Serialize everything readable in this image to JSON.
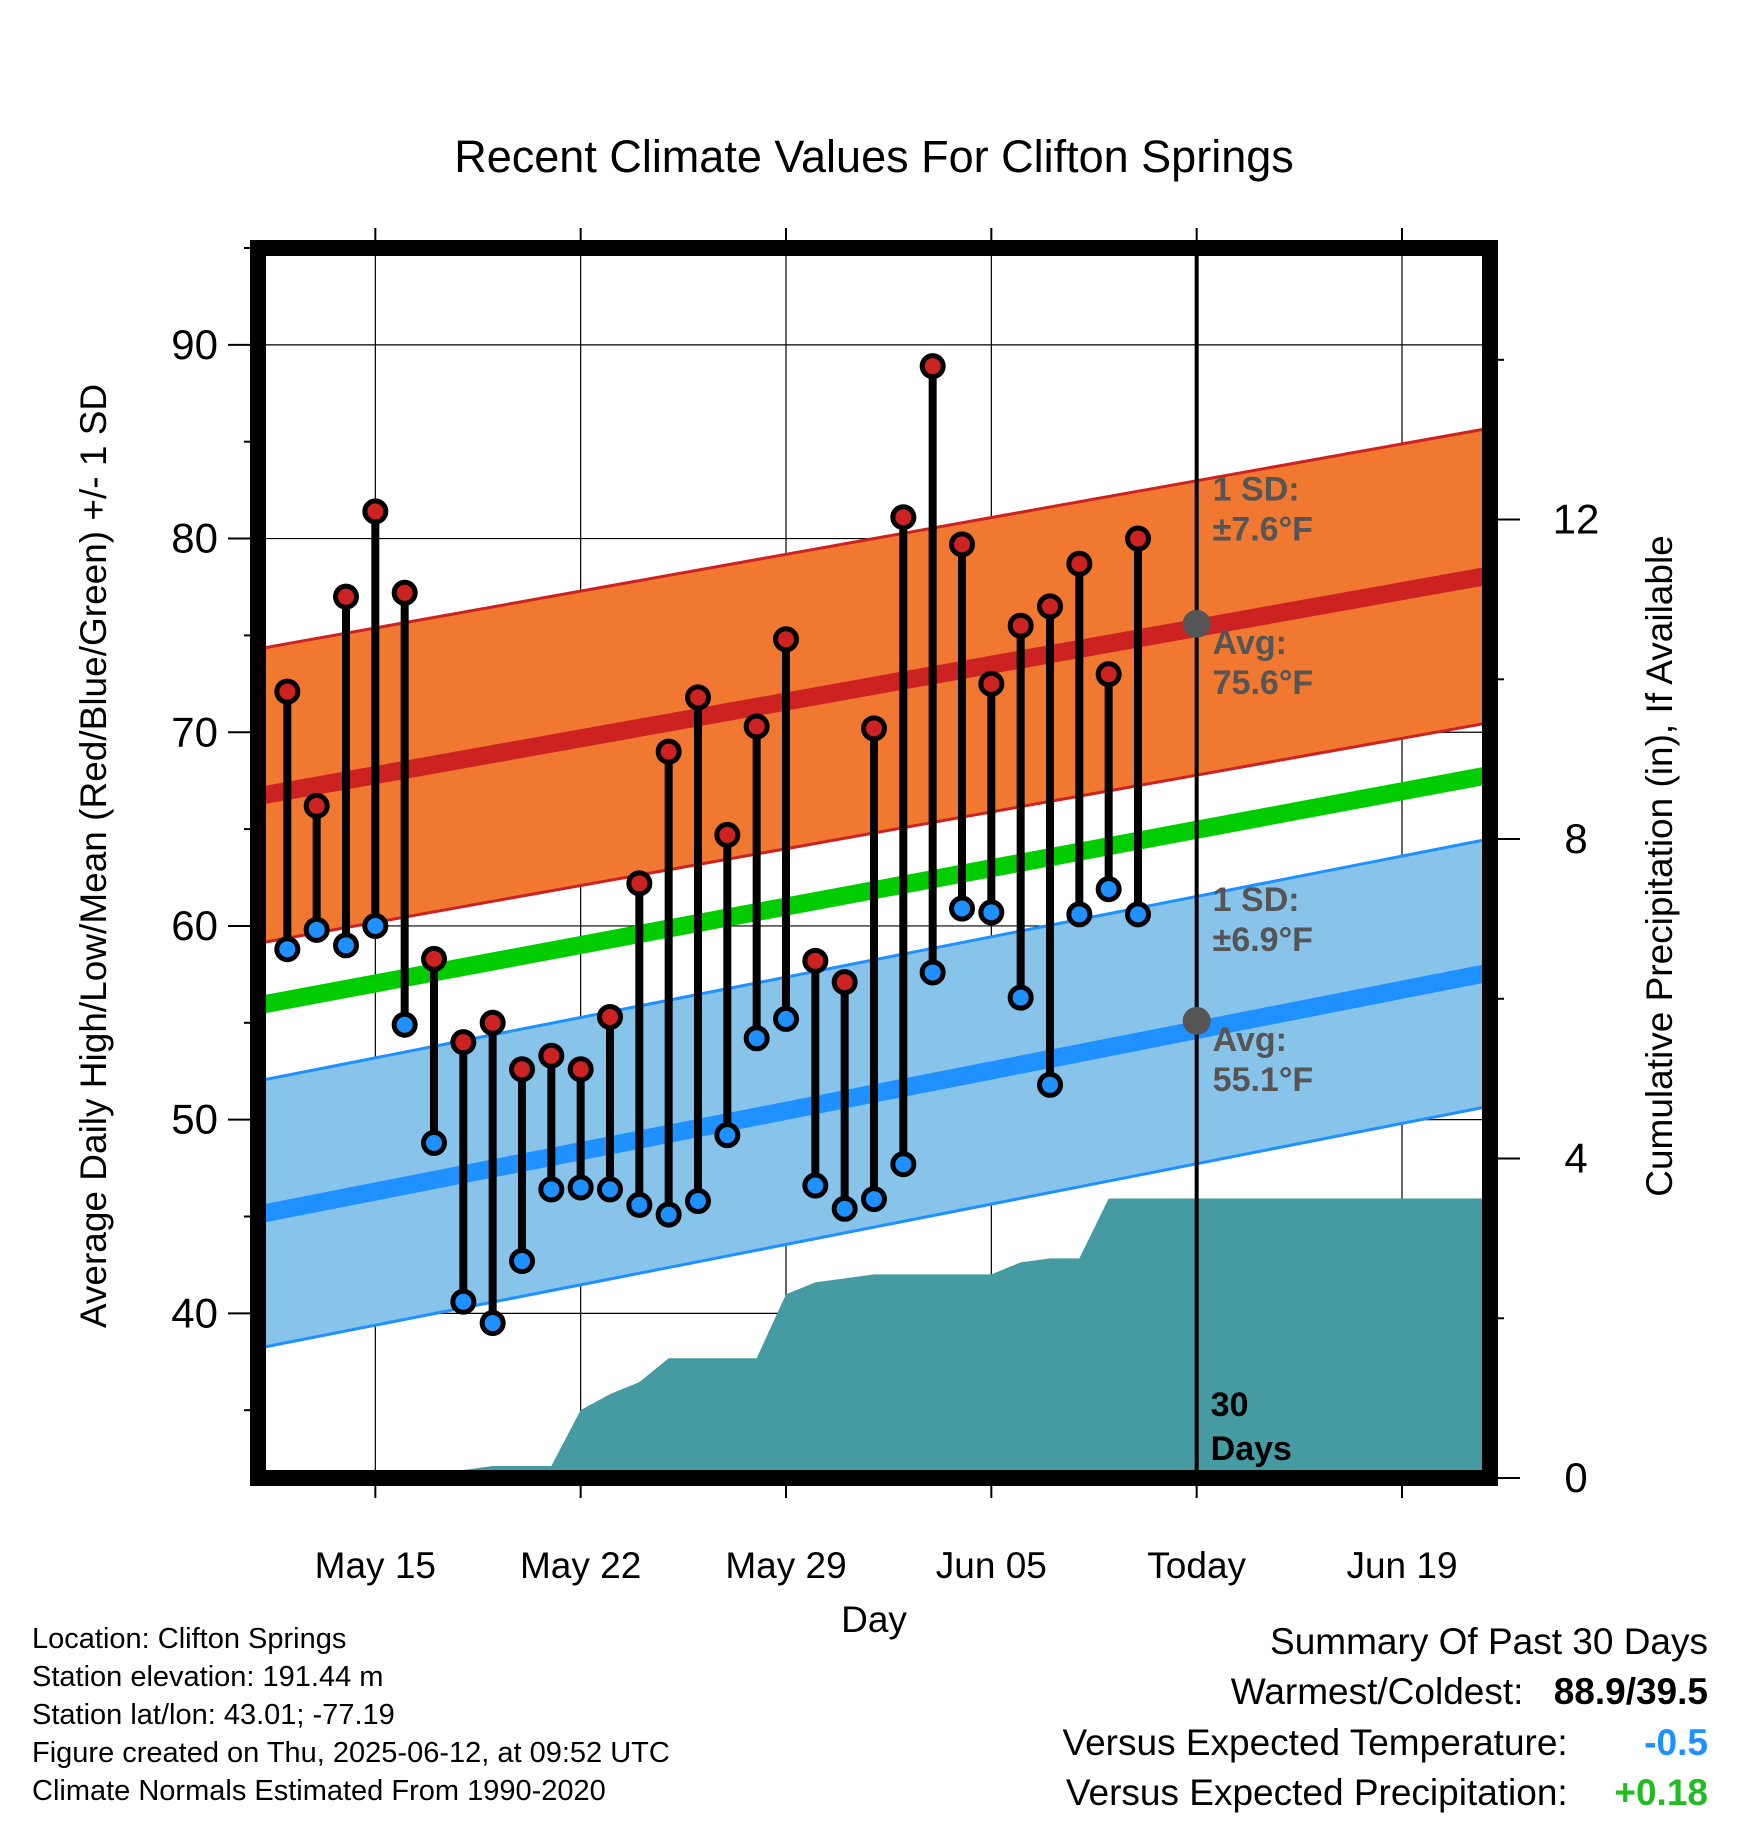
{
  "chart_data": {
    "type": "line",
    "title": "Recent Climate Values For Clifton Springs",
    "xlabel": "Day",
    "ylabel": "Average Daily High/Low/Mean (Red/Blue/Green) +/- 1 SD",
    "y2label": "Cumulative Precipitation (in), If Available",
    "ylim": [
      31.5,
      95
    ],
    "y2lim": [
      0,
      15.4
    ],
    "yticks": [
      40,
      50,
      60,
      70,
      80,
      90
    ],
    "y2ticks": [
      0,
      4,
      8,
      12
    ],
    "xlim": [
      "May 11",
      "Jun 22"
    ],
    "xticks": [
      {
        "date": "May 15",
        "label": "May 15"
      },
      {
        "date": "May 22",
        "label": "May 22"
      },
      {
        "date": "May 29",
        "label": "May 29"
      },
      {
        "date": "Jun 05",
        "label": "Jun 05"
      },
      {
        "date": "Jun 12",
        "label": "Today"
      },
      {
        "date": "Jun 19",
        "label": "Jun 19"
      }
    ],
    "grid": true,
    "today": "Jun 12",
    "period_label": "30 Days",
    "dates": [
      "May 12",
      "May 13",
      "May 14",
      "May 15",
      "May 16",
      "May 17",
      "May 18",
      "May 19",
      "May 20",
      "May 21",
      "May 22",
      "May 23",
      "May 24",
      "May 25",
      "May 26",
      "May 27",
      "May 28",
      "May 29",
      "May 30",
      "May 31",
      "Jun 01",
      "Jun 02",
      "Jun 03",
      "Jun 04",
      "Jun 05",
      "Jun 06",
      "Jun 07",
      "Jun 08",
      "Jun 09",
      "Jun 10",
      "Jun 11"
    ],
    "daily_high": [
      72.1,
      66.2,
      77.0,
      81.4,
      77.2,
      58.3,
      54.0,
      55.0,
      52.6,
      53.3,
      52.6,
      55.3,
      62.2,
      69.0,
      71.8,
      64.7,
      70.3,
      74.8,
      58.2,
      57.1,
      70.2,
      81.1,
      88.9,
      79.7,
      72.5,
      75.5,
      76.5,
      78.7,
      73.0,
      80.0,
      null
    ],
    "daily_low": [
      58.8,
      59.8,
      59.0,
      60.0,
      54.9,
      48.8,
      40.6,
      39.5,
      42.7,
      46.4,
      46.5,
      46.4,
      45.6,
      45.1,
      45.8,
      49.2,
      54.2,
      55.2,
      46.6,
      45.4,
      45.9,
      47.7,
      57.6,
      60.9,
      60.7,
      56.3,
      51.8,
      60.6,
      61.9,
      60.6,
      null
    ],
    "normal_high": {
      "start": 66.7,
      "end": 78.1,
      "start_date": "May 11",
      "end_date": "Jun 22",
      "today_value": 75.6,
      "sd": 7.6
    },
    "normal_low": {
      "start": 45.1,
      "end": 57.6,
      "start_date": "May 11",
      "end_date": "Jun 22",
      "today_value": 55.1,
      "sd": 6.9
    },
    "normal_mean": {
      "start": 55.9,
      "end": 67.8,
      "start_date": "May 11",
      "end_date": "Jun 22"
    },
    "cumulative_precip": {
      "dates": [
        "May 11",
        "May 14",
        "May 15",
        "May 16",
        "May 17",
        "May 18",
        "May 19",
        "May 20",
        "May 21",
        "May 22",
        "May 23",
        "May 24",
        "May 25",
        "May 26",
        "May 27",
        "May 28",
        "May 29",
        "May 30",
        "May 31",
        "Jun 01",
        "Jun 02",
        "Jun 03",
        "Jun 04",
        "Jun 05",
        "Jun 06",
        "Jun 07",
        "Jun 08",
        "Jun 09",
        "Jun 10",
        "Jun 11",
        "Jun 12",
        "Jun 22"
      ],
      "values": [
        0,
        0,
        0,
        0,
        0,
        0.1,
        0.15,
        0.15,
        0.15,
        0.85,
        1.05,
        1.2,
        1.5,
        1.5,
        1.5,
        1.5,
        2.3,
        2.45,
        2.5,
        2.55,
        2.55,
        2.55,
        2.55,
        2.55,
        2.7,
        2.75,
        2.75,
        3.5,
        3.5,
        3.5,
        3.5,
        3.5
      ]
    },
    "annotations": {
      "high_sd": [
        "1 SD:",
        "±7.6°F"
      ],
      "high_avg": [
        "Avg:",
        "75.6°F"
      ],
      "low_sd": [
        "1 SD:",
        "±6.9°F"
      ],
      "low_avg": [
        "Avg:",
        "55.1°F"
      ]
    },
    "colors": {
      "high": "#cc2222",
      "high_band": "#f07830",
      "low": "#1e90ff",
      "low_band": "#88c3ea",
      "mean": "#00cc00",
      "precip": "#469aa2",
      "annotation": "#555555",
      "today_marker": "#555555"
    }
  },
  "info": {
    "location": "Location: Clifton Springs",
    "elevation": "Station elevation: 191.44 m",
    "latlon": "Station lat/lon: 43.01; -77.19",
    "created": "Figure created on Thu, 2025-06-12, at 09:52 UTC",
    "normals": "Climate Normals Estimated From 1990-2020"
  },
  "summary": {
    "title": "Summary Of Past 30 Days",
    "warm_label": "Warmest/Coldest:",
    "warm_value": "88.9/39.5",
    "temp_label": "Versus Expected Temperature:",
    "temp_value": "-0.5",
    "temp_color": "#1e90ff",
    "precip_label": "Versus Expected Precipitation:",
    "precip_value": "+0.18",
    "precip_color": "#22bb22"
  }
}
